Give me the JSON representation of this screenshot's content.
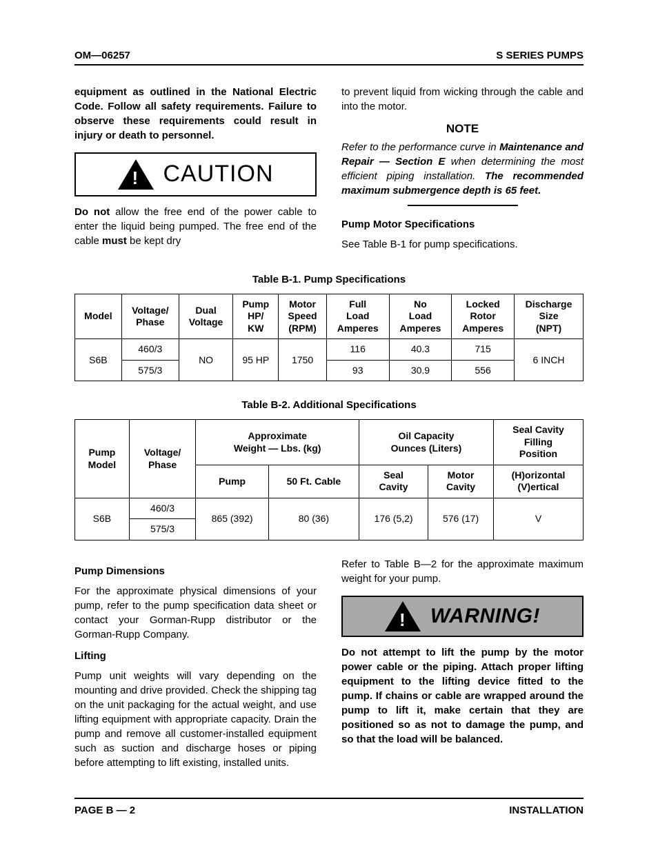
{
  "header": {
    "left": "OM—06257",
    "right": "S SERIES PUMPS"
  },
  "colL": {
    "p1": "equipment as outlined in the National Electric Code. Follow all safety requirements. Failure to observe these requirements could result in injury or death to personnel.",
    "caution": "CAUTION",
    "p2a": "Do not",
    "p2b": " allow the free end of the power cable to enter the liquid being pumped. The free end of the cable ",
    "p2c": "must",
    "p2d": " be kept dry"
  },
  "colR": {
    "p1": "to prevent liquid from wicking through the cable and into the motor.",
    "note": "NOTE",
    "p2a": "Refer to the performance curve in ",
    "p2b": "Maintenance and Repair — Section E",
    "p2c": " when determining the most efficient piping installation. ",
    "p2d": "The recommended maximum submergence depth is 65 feet.",
    "h1": "Pump Motor Specifications",
    "p3": "See Table B-1 for pump specifications."
  },
  "table1": {
    "title": "Table B-1. Pump Specifications",
    "headers": [
      "Model",
      "Voltage/\nPhase",
      "Dual\nVoltage",
      "Pump\nHP/\nKW",
      "Motor\nSpeed\n(RPM)",
      "Full\nLoad\nAmperes",
      "No\nLoad\nAmperes",
      "Locked\nRotor\nAmperes",
      "Discharge\nSize\n(NPT)"
    ],
    "model": "S6B",
    "v1": "460/3",
    "v2": "575/3",
    "dual": "NO",
    "hp": "95 HP",
    "rpm": "1750",
    "fla1": "116",
    "nla1": "40.3",
    "lra1": "715",
    "fla2": "93",
    "nla2": "30.9",
    "lra2": "556",
    "disch": "6 INCH"
  },
  "table2": {
    "title": "Table B-2. Additional Specifications",
    "h_model": "Pump\nModel",
    "h_vp": "Voltage/\nPhase",
    "h_wt": "Approximate\nWeight — Lbs. (kg)",
    "h_oil": "Oil Capacity\nOunces (Liters)",
    "h_seal": "Seal Cavity\nFilling\nPosition",
    "h_pump": "Pump",
    "h_cable": "50 Ft. Cable",
    "h_sc": "Seal\nCavity",
    "h_mc": "Motor\nCavity",
    "h_hv": "(H)orizontal\n(V)ertical",
    "model": "S6B",
    "v1": "460/3",
    "v2": "575/3",
    "wt_p": "865 (392)",
    "wt_c": "80 (36)",
    "oil_s": "176 (5,2)",
    "oil_m": "576 (17)",
    "pos": "V"
  },
  "lower": {
    "hL1": "Pump Dimensions",
    "pL1": "For the approximate physical dimensions of your pump, refer to the pump specification data sheet or contact your Gorman-Rupp distributor or the Gorman-Rupp Company.",
    "hL2": "Lifting",
    "pL2": "Pump unit weights will vary depending on the mounting and drive provided. Check the shipping tag on the unit packaging for the actual weight, and use lifting equipment with appropriate capacity. Drain the pump and remove all customer-installed equipment such as suction and discharge hoses or piping before attempting to lift existing, installed units.",
    "pR1": "Refer to Table B—2 for the approximate maximum weight for your pump.",
    "warning": "WARNING!",
    "pR2": "Do not attempt to lift the pump by the motor power cable or the piping. Attach proper lifting equipment to the lifting device fitted to the pump. If chains or cable are wrapped around the pump to lift it, make certain that they are positioned so as not to damage the pump, and so that the load will be balanced."
  },
  "footer": {
    "left": "PAGE B — 2",
    "right": "INSTALLATION"
  }
}
